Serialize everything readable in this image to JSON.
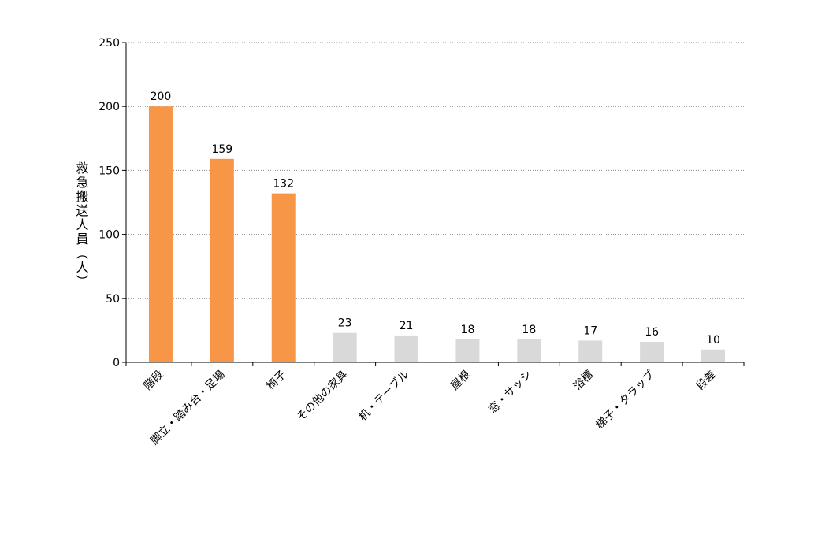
{
  "chart_data": {
    "type": "bar",
    "y_axis_label": "救急搬送人員（人）",
    "categories": [
      "階段",
      "脚立・踏み台・足場",
      "椅子",
      "その他の家具",
      "机・テーブル",
      "屋根",
      "窓・サッシ",
      "浴槽",
      "梯子・タラップ",
      "段差"
    ],
    "values": [
      200,
      159,
      132,
      23,
      21,
      18,
      18,
      17,
      16,
      10
    ],
    "colors": [
      "#f79646",
      "#f79646",
      "#f79646",
      "#d9d9d9",
      "#d9d9d9",
      "#d9d9d9",
      "#d9d9d9",
      "#d9d9d9",
      "#d9d9d9",
      "#d9d9d9"
    ],
    "ylim": [
      0,
      250
    ],
    "yticks": [
      0,
      50,
      100,
      150,
      200,
      250
    ],
    "grid": true
  }
}
